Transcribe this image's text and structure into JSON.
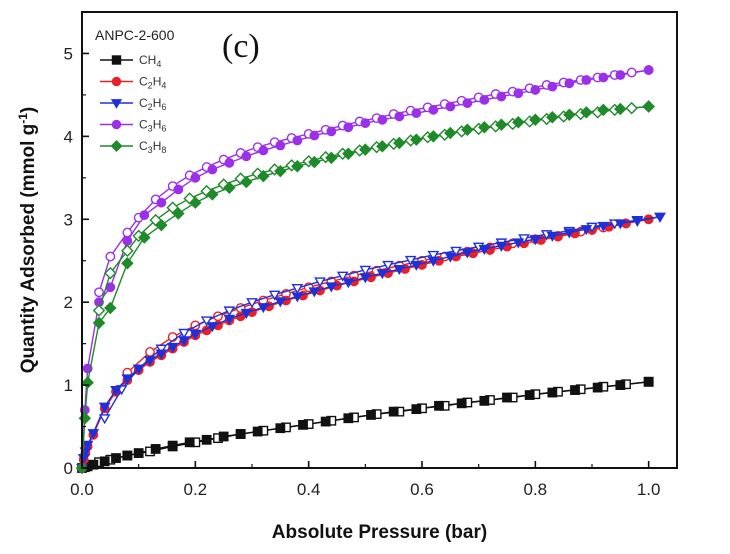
{
  "chart_data": {
    "type": "line",
    "title": "",
    "panel_label": "(c)",
    "xlabel": "Absolute Pressure (bar)",
    "ylabel_main": "Quantity Adsorbed (mmol g",
    "ylabel_sup": "-1",
    "ylabel_end": ")",
    "xlim": [
      0,
      1.05
    ],
    "ylim": [
      0,
      5.5
    ],
    "xticks": [
      0.0,
      0.2,
      0.4,
      0.6,
      0.8,
      1.0
    ],
    "xtick_labels": [
      "0.0",
      "0.2",
      "0.4",
      "0.6",
      "0.8",
      "1.0"
    ],
    "yticks": [
      0,
      1,
      2,
      3,
      4,
      5
    ],
    "ytick_labels": [
      "0",
      "1",
      "2",
      "3",
      "4",
      "5"
    ],
    "grid": false,
    "legend": {
      "title": "ANPC-2-600",
      "placement": "top-left",
      "entries": [
        {
          "base": "CH",
          "sub1": "4",
          "mid": "",
          "sub2": ""
        },
        {
          "base": "C",
          "sub1": "2",
          "mid": "H",
          "sub2": "4"
        },
        {
          "base": "C",
          "sub1": "2",
          "mid": "H",
          "sub2": "6"
        },
        {
          "base": "C",
          "sub1": "3",
          "mid": "H",
          "sub2": "6"
        },
        {
          "base": "C",
          "sub1": "3",
          "mid": "H",
          "sub2": "8"
        }
      ]
    },
    "series": [
      {
        "name": "CH4",
        "color": "#111111",
        "marker": "square",
        "adsorption": {
          "x": [
            0.0,
            0.005,
            0.01,
            0.02,
            0.04,
            0.06,
            0.08,
            0.1,
            0.13,
            0.16,
            0.19,
            0.22,
            0.25,
            0.28,
            0.31,
            0.35,
            0.39,
            0.43,
            0.47,
            0.51,
            0.55,
            0.59,
            0.63,
            0.67,
            0.71,
            0.75,
            0.79,
            0.83,
            0.87,
            0.91,
            0.95,
            1.0
          ],
          "y": [
            0.0,
            0.01,
            0.02,
            0.04,
            0.08,
            0.12,
            0.15,
            0.18,
            0.23,
            0.27,
            0.31,
            0.34,
            0.38,
            0.41,
            0.44,
            0.48,
            0.52,
            0.56,
            0.6,
            0.64,
            0.68,
            0.71,
            0.75,
            0.78,
            0.81,
            0.85,
            0.88,
            0.91,
            0.94,
            0.97,
            1.0,
            1.04
          ]
        },
        "desorption": {
          "x": [
            1.0,
            0.96,
            0.92,
            0.88,
            0.84,
            0.8,
            0.76,
            0.72,
            0.68,
            0.64,
            0.6,
            0.56,
            0.52,
            0.48,
            0.44,
            0.4,
            0.36,
            0.32,
            0.28,
            0.24,
            0.2,
            0.16,
            0.12,
            0.08,
            0.05,
            0.03
          ],
          "y": [
            1.04,
            1.01,
            0.98,
            0.95,
            0.92,
            0.89,
            0.85,
            0.82,
            0.79,
            0.75,
            0.72,
            0.68,
            0.65,
            0.61,
            0.57,
            0.53,
            0.49,
            0.45,
            0.41,
            0.36,
            0.31,
            0.26,
            0.2,
            0.15,
            0.1,
            0.07
          ]
        }
      },
      {
        "name": "C2H4",
        "color": "#e8202a",
        "marker": "circle",
        "adsorption": {
          "x": [
            0.0,
            0.003,
            0.006,
            0.01,
            0.02,
            0.04,
            0.06,
            0.08,
            0.1,
            0.12,
            0.14,
            0.16,
            0.18,
            0.2,
            0.22,
            0.24,
            0.26,
            0.28,
            0.3,
            0.33,
            0.36,
            0.39,
            0.42,
            0.45,
            0.48,
            0.51,
            0.54,
            0.57,
            0.6,
            0.63,
            0.66,
            0.69,
            0.72,
            0.75,
            0.78,
            0.81,
            0.84,
            0.87,
            0.9,
            0.93,
            0.96,
            1.0
          ],
          "y": [
            0.0,
            0.1,
            0.18,
            0.26,
            0.4,
            0.72,
            0.92,
            1.06,
            1.18,
            1.28,
            1.36,
            1.44,
            1.52,
            1.6,
            1.66,
            1.72,
            1.78,
            1.83,
            1.88,
            1.95,
            2.02,
            2.08,
            2.14,
            2.2,
            2.25,
            2.3,
            2.35,
            2.4,
            2.45,
            2.5,
            2.55,
            2.59,
            2.63,
            2.67,
            2.71,
            2.75,
            2.79,
            2.83,
            2.87,
            2.91,
            2.95,
            3.0
          ]
        },
        "desorption": {
          "x": [
            1.0,
            0.96,
            0.92,
            0.88,
            0.84,
            0.8,
            0.76,
            0.72,
            0.68,
            0.64,
            0.6,
            0.56,
            0.52,
            0.48,
            0.44,
            0.4,
            0.36,
            0.32,
            0.28,
            0.24,
            0.2,
            0.16,
            0.12,
            0.08
          ],
          "y": [
            3.0,
            2.95,
            2.9,
            2.85,
            2.8,
            2.76,
            2.71,
            2.66,
            2.61,
            2.55,
            2.5,
            2.44,
            2.38,
            2.32,
            2.25,
            2.18,
            2.1,
            2.02,
            1.93,
            1.83,
            1.72,
            1.58,
            1.4,
            1.15
          ]
        }
      },
      {
        "name": "C2H6",
        "color": "#2030d8",
        "marker": "triangle-down",
        "adsorption": {
          "x": [
            0.0,
            0.003,
            0.006,
            0.01,
            0.02,
            0.04,
            0.06,
            0.08,
            0.1,
            0.12,
            0.14,
            0.16,
            0.18,
            0.2,
            0.23,
            0.26,
            0.29,
            0.32,
            0.35,
            0.38,
            0.41,
            0.44,
            0.47,
            0.5,
            0.53,
            0.56,
            0.59,
            0.62,
            0.65,
            0.68,
            0.71,
            0.74,
            0.77,
            0.8,
            0.83,
            0.86,
            0.89,
            0.92,
            0.95,
            0.98,
            1.02
          ],
          "y": [
            0.0,
            0.12,
            0.2,
            0.28,
            0.42,
            0.74,
            0.94,
            1.08,
            1.2,
            1.3,
            1.38,
            1.46,
            1.54,
            1.62,
            1.71,
            1.8,
            1.87,
            1.94,
            2.01,
            2.07,
            2.13,
            2.19,
            2.24,
            2.3,
            2.35,
            2.4,
            2.45,
            2.5,
            2.55,
            2.6,
            2.64,
            2.68,
            2.72,
            2.76,
            2.8,
            2.84,
            2.88,
            2.92,
            2.95,
            2.98,
            3.03
          ]
        },
        "desorption": {
          "x": [
            1.02,
            0.98,
            0.94,
            0.9,
            0.86,
            0.82,
            0.78,
            0.74,
            0.7,
            0.66,
            0.62,
            0.58,
            0.54,
            0.5,
            0.46,
            0.42,
            0.38,
            0.34,
            0.3,
            0.26,
            0.22,
            0.18,
            0.14,
            0.1,
            0.07,
            0.04
          ],
          "y": [
            3.03,
            2.99,
            2.95,
            2.91,
            2.86,
            2.82,
            2.77,
            2.72,
            2.67,
            2.62,
            2.57,
            2.51,
            2.45,
            2.39,
            2.32,
            2.25,
            2.17,
            2.09,
            2.0,
            1.9,
            1.78,
            1.63,
            1.44,
            1.2,
            0.95,
            0.6
          ]
        }
      },
      {
        "name": "C3H6",
        "color": "#9b30e8",
        "marker": "circle",
        "adsorption": {
          "x": [
            0.0,
            0.005,
            0.01,
            0.03,
            0.05,
            0.08,
            0.11,
            0.14,
            0.17,
            0.2,
            0.23,
            0.26,
            0.29,
            0.32,
            0.35,
            0.38,
            0.41,
            0.44,
            0.47,
            0.5,
            0.53,
            0.56,
            0.59,
            0.62,
            0.65,
            0.68,
            0.71,
            0.74,
            0.77,
            0.8,
            0.83,
            0.86,
            0.89,
            0.92,
            0.95,
            1.0
          ],
          "y": [
            0.0,
            0.7,
            1.2,
            2.0,
            2.18,
            2.74,
            3.05,
            3.2,
            3.36,
            3.5,
            3.6,
            3.68,
            3.76,
            3.83,
            3.89,
            3.95,
            4.01,
            4.06,
            4.11,
            4.16,
            4.2,
            4.24,
            4.28,
            4.32,
            4.36,
            4.4,
            4.44,
            4.48,
            4.52,
            4.56,
            4.6,
            4.64,
            4.68,
            4.71,
            4.74,
            4.8
          ]
        },
        "desorption": {
          "x": [
            1.0,
            0.97,
            0.94,
            0.91,
            0.88,
            0.85,
            0.82,
            0.79,
            0.76,
            0.73,
            0.7,
            0.67,
            0.64,
            0.61,
            0.58,
            0.55,
            0.52,
            0.49,
            0.46,
            0.43,
            0.4,
            0.37,
            0.34,
            0.31,
            0.28,
            0.25,
            0.22,
            0.19,
            0.16,
            0.13,
            0.1,
            0.08,
            0.05,
            0.03
          ],
          "y": [
            4.8,
            4.77,
            4.74,
            4.71,
            4.68,
            4.65,
            4.62,
            4.58,
            4.54,
            4.51,
            4.47,
            4.43,
            4.39,
            4.35,
            4.31,
            4.27,
            4.22,
            4.18,
            4.13,
            4.08,
            4.03,
            3.98,
            3.93,
            3.87,
            3.8,
            3.72,
            3.63,
            3.53,
            3.4,
            3.24,
            3.02,
            2.84,
            2.55,
            2.12
          ]
        }
      },
      {
        "name": "C3H8",
        "color": "#1f8a2a",
        "marker": "diamond",
        "adsorption": {
          "x": [
            0.0,
            0.005,
            0.01,
            0.03,
            0.05,
            0.08,
            0.11,
            0.14,
            0.17,
            0.2,
            0.23,
            0.26,
            0.29,
            0.32,
            0.35,
            0.38,
            0.41,
            0.44,
            0.47,
            0.5,
            0.53,
            0.56,
            0.59,
            0.62,
            0.65,
            0.68,
            0.71,
            0.74,
            0.77,
            0.8,
            0.83,
            0.86,
            0.89,
            0.92,
            0.95,
            1.0
          ],
          "y": [
            0.0,
            0.6,
            1.03,
            1.75,
            1.93,
            2.47,
            2.78,
            2.93,
            3.07,
            3.2,
            3.3,
            3.38,
            3.45,
            3.52,
            3.58,
            3.64,
            3.69,
            3.74,
            3.79,
            3.84,
            3.88,
            3.92,
            3.96,
            4.0,
            4.04,
            4.08,
            4.11,
            4.14,
            4.17,
            4.2,
            4.23,
            4.26,
            4.29,
            4.32,
            4.33,
            4.36
          ]
        },
        "desorption": {
          "x": [
            1.0,
            0.97,
            0.94,
            0.91,
            0.88,
            0.85,
            0.82,
            0.79,
            0.76,
            0.73,
            0.7,
            0.67,
            0.64,
            0.61,
            0.58,
            0.55,
            0.52,
            0.49,
            0.46,
            0.43,
            0.4,
            0.37,
            0.34,
            0.31,
            0.28,
            0.25,
            0.22,
            0.19,
            0.16,
            0.13,
            0.1,
            0.08,
            0.05,
            0.03
          ],
          "y": [
            4.36,
            4.34,
            4.32,
            4.29,
            4.27,
            4.24,
            4.21,
            4.18,
            4.15,
            4.12,
            4.09,
            4.06,
            4.02,
            3.99,
            3.95,
            3.91,
            3.87,
            3.83,
            3.79,
            3.75,
            3.7,
            3.65,
            3.6,
            3.55,
            3.49,
            3.42,
            3.34,
            3.25,
            3.14,
            2.99,
            2.8,
            2.62,
            2.35,
            1.9
          ]
        }
      }
    ]
  }
}
